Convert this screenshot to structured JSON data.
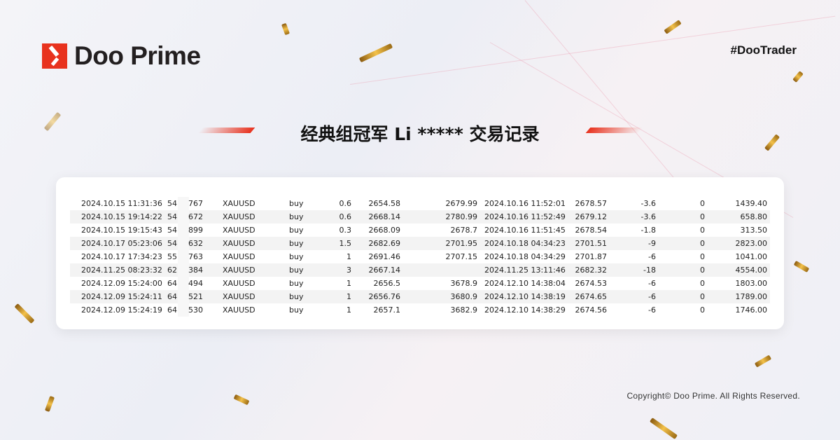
{
  "brand": {
    "name": "Doo Prime",
    "hashtag": "#DooTrader",
    "accent": "#e8321e"
  },
  "title": "经典组冠军 Li ***** 交易记录",
  "copyright": "Copyright© Doo Prime. All Rights Reserved.",
  "trades": [
    [
      "2024.10.15 11:31:36",
      "54",
      "767",
      "XAUUSD",
      "buy",
      "0.6",
      "2654.58",
      "2679.99",
      "2024.10.16 11:52:01",
      "2678.57",
      "-3.6",
      "0",
      "1439.40"
    ],
    [
      "2024.10.15 19:14:22",
      "54",
      "672",
      "XAUUSD",
      "buy",
      "0.6",
      "2668.14",
      "2780.99",
      "2024.10.16 11:52:49",
      "2679.12",
      "-3.6",
      "0",
      "658.80"
    ],
    [
      "2024.10.15 19:15:43",
      "54",
      "899",
      "XAUUSD",
      "buy",
      "0.3",
      "2668.09",
      "2678.7",
      "2024.10.16 11:51:45",
      "2678.54",
      "-1.8",
      "0",
      "313.50"
    ],
    [
      "2024.10.17 05:23:06",
      "54",
      "632",
      "XAUUSD",
      "buy",
      "1.5",
      "2682.69",
      "2701.95",
      "2024.10.18 04:34:23",
      "2701.51",
      "-9",
      "0",
      "2823.00"
    ],
    [
      "2024.10.17 17:34:23",
      "55",
      "763",
      "XAUUSD",
      "buy",
      "1",
      "2691.46",
      "2707.15",
      "2024.10.18 04:34:29",
      "2701.87",
      "-6",
      "0",
      "1041.00"
    ],
    [
      "2024.11.25 08:23:32",
      "62",
      "384",
      "XAUUSD",
      "buy",
      "3",
      "2667.14",
      "",
      "2024.11.25 13:11:46",
      "2682.32",
      "-18",
      "0",
      "4554.00"
    ],
    [
      "2024.12.09 15:24:00",
      "64",
      "494",
      "XAUUSD",
      "buy",
      "1",
      "2656.5",
      "3678.9",
      "2024.12.10 14:38:04",
      "2674.53",
      "-6",
      "0",
      "1803.00"
    ],
    [
      "2024.12.09 15:24:11",
      "64",
      "521",
      "XAUUSD",
      "buy",
      "1",
      "2656.76",
      "3680.9",
      "2024.12.10 14:38:19",
      "2674.65",
      "-6",
      "0",
      "1789.00"
    ],
    [
      "2024.12.09 15:24:19",
      "64",
      "530",
      "XAUUSD",
      "buy",
      "1",
      "2657.1",
      "3682.9",
      "2024.12.10 14:38:29",
      "2674.56",
      "-6",
      "0",
      "1746.00"
    ]
  ]
}
